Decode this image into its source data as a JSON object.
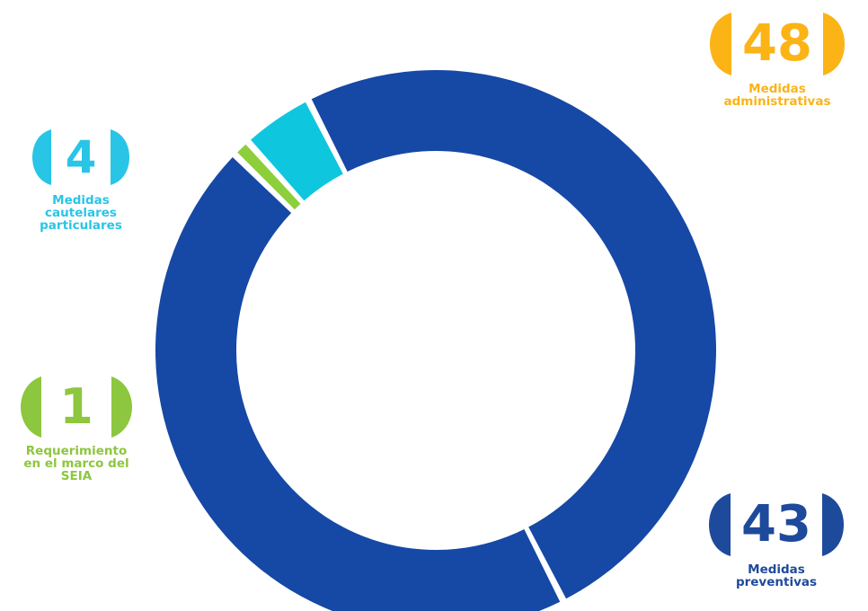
{
  "chart_data": {
    "type": "pie",
    "categories": [
      "Medidas administrativas",
      "Medidas preventivas",
      "Requerimiento en el marco del SEIA",
      "Medidas cautelares particulares"
    ],
    "values": [
      48,
      43,
      1,
      4
    ],
    "series": [
      {
        "values": [
          48,
          43,
          1,
          4
        ]
      }
    ],
    "labels": [
      {
        "key": "admin",
        "value": "48",
        "text": "Medidas\nadministrativas",
        "color": "#fbb316"
      },
      {
        "key": "prev",
        "value": "43",
        "text": "Medidas\npreventivas",
        "color": "#1e4a9c"
      },
      {
        "key": "seia",
        "value": "1",
        "text": "Requerimiento\nen el marco del\nSEIA",
        "color": "#8dc63f"
      },
      {
        "key": "caut",
        "value": "4",
        "text": "Medidas\ncautelares\nparticulares",
        "color": "#29c5e6"
      }
    ],
    "slice_colors": [
      "#1648a5",
      "#1648a5",
      "#8dcf3b",
      "#0fc6df"
    ],
    "donut": true
  }
}
